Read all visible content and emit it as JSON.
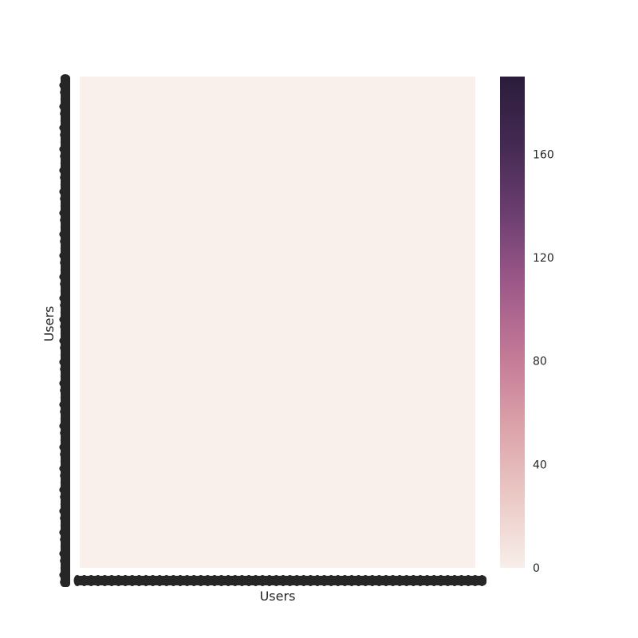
{
  "chart_data": {
    "type": "heatmap",
    "title": "",
    "xlabel": "Users",
    "ylabel": "Users",
    "value_range": [
      0,
      190
    ],
    "cell_color_value": 0,
    "colorbar": {
      "ticks": [
        "0",
        "40",
        "80",
        "120",
        "160"
      ],
      "tick_values": [
        0,
        40,
        80,
        120,
        160
      ],
      "colormap": "cubehelix-light (cream to dark purple)",
      "color_stops": [
        "#f8eeea",
        "#ebc9c5",
        "#dca3aa",
        "#c47a97",
        "#9f5a8a",
        "#6e3f72",
        "#452a53",
        "#2b1c3b"
      ]
    },
    "x_tick_labels_overlapping": true,
    "y_tick_labels_overlapping": true
  }
}
